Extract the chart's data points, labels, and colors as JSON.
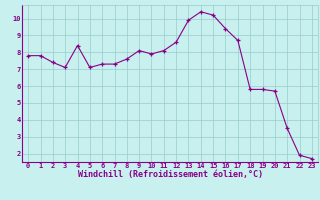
{
  "x": [
    0,
    1,
    2,
    3,
    4,
    5,
    6,
    7,
    8,
    9,
    10,
    11,
    12,
    13,
    14,
    15,
    16,
    17,
    18,
    19,
    20,
    21,
    22,
    23
  ],
  "y": [
    7.8,
    7.8,
    7.4,
    7.1,
    8.4,
    7.1,
    7.3,
    7.3,
    7.6,
    8.1,
    7.9,
    8.1,
    8.6,
    9.9,
    10.4,
    10.2,
    9.4,
    8.7,
    5.8,
    5.8,
    5.7,
    3.5,
    1.9,
    1.7
  ],
  "line_color": "#880088",
  "marker_color": "#880088",
  "bg_color": "#c8f0ee",
  "grid_color": "#99cccc",
  "xlabel": "Windchill (Refroidissement éolien,°C)",
  "xlabel_color": "#880088",
  "tick_color": "#880088",
  "ylim": [
    1.5,
    10.8
  ],
  "yticks": [
    2,
    3,
    4,
    5,
    6,
    7,
    8,
    9,
    10
  ],
  "xticks": [
    0,
    1,
    2,
    3,
    4,
    5,
    6,
    7,
    8,
    9,
    10,
    11,
    12,
    13,
    14,
    15,
    16,
    17,
    18,
    19,
    20,
    21,
    22,
    23
  ]
}
